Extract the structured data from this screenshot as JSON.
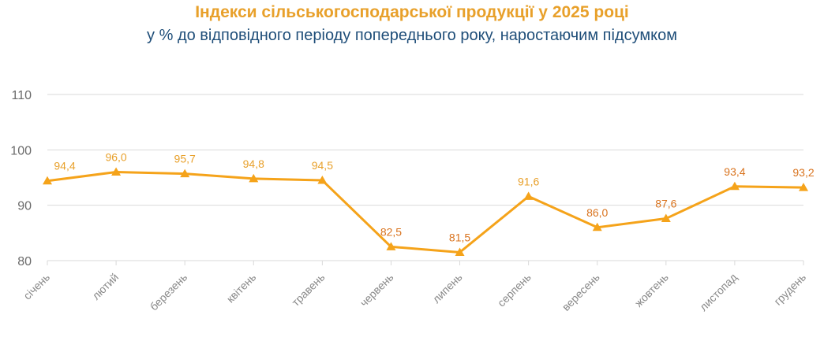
{
  "chart_data": {
    "type": "line",
    "title": "Індекси сільськогосподарської продукції у 2025 році",
    "subtitle": "у % до відповідного періоду попереднього року, наростаючим підсумком",
    "categories": [
      "січень",
      "лютий",
      "березень",
      "квітень",
      "травень",
      "червень",
      "липень",
      "серпень",
      "вересень",
      "жовтень",
      "листопад",
      "грудень"
    ],
    "series": [
      {
        "values": [
          94.4,
          96.0,
          95.7,
          94.8,
          94.5,
          82.5,
          81.5,
          91.6,
          86.0,
          87.6,
          93.4,
          93.2
        ],
        "labels": [
          "94,4",
          "96,0",
          "95,7",
          "94,8",
          "94,5",
          "82,5",
          "81,5",
          "91,6",
          "86,0",
          "87,6",
          "93,4",
          "93,2"
        ]
      }
    ],
    "yticks": [
      80,
      90,
      100,
      110
    ],
    "ylim": [
      80,
      110
    ],
    "grid": true,
    "legend": "none",
    "colors": {
      "line": "#F5A31A",
      "label_yellow": "#E8A02A",
      "label_orange": "#D9731E",
      "title": "#E8A02A",
      "subtitle": "#1F4E79",
      "grid": "#d9d9d9"
    }
  }
}
